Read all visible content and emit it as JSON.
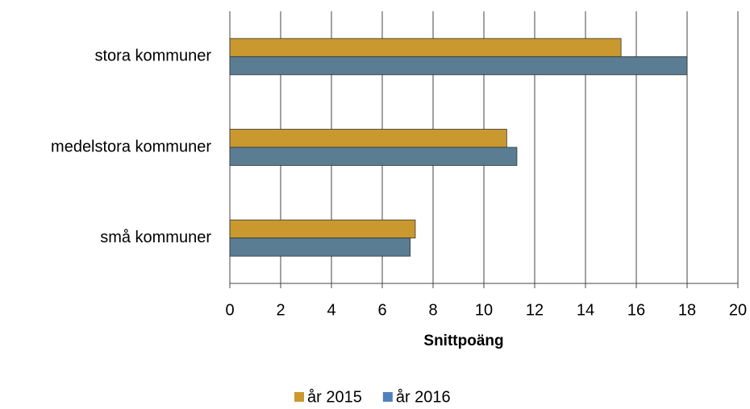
{
  "chart_data": {
    "type": "hbar",
    "categories": [
      "stora kommuner",
      "medelstora kommuner",
      "små kommuner"
    ],
    "series": [
      {
        "name": "år 2015",
        "color": "#c9992f",
        "legend_color": "#c9992f",
        "values": [
          15.4,
          10.9,
          7.3
        ]
      },
      {
        "name": "år 2016",
        "color": "#5a7d93",
        "legend_color": "#4f81bd",
        "values": [
          18.0,
          11.3,
          7.1
        ]
      }
    ],
    "xlabel": "Snittpoäng",
    "xlim": [
      0,
      20
    ],
    "xticks": [
      0,
      2,
      4,
      6,
      8,
      10,
      12,
      14,
      16,
      18,
      20
    ],
    "grid": true,
    "legend": "bottom"
  }
}
